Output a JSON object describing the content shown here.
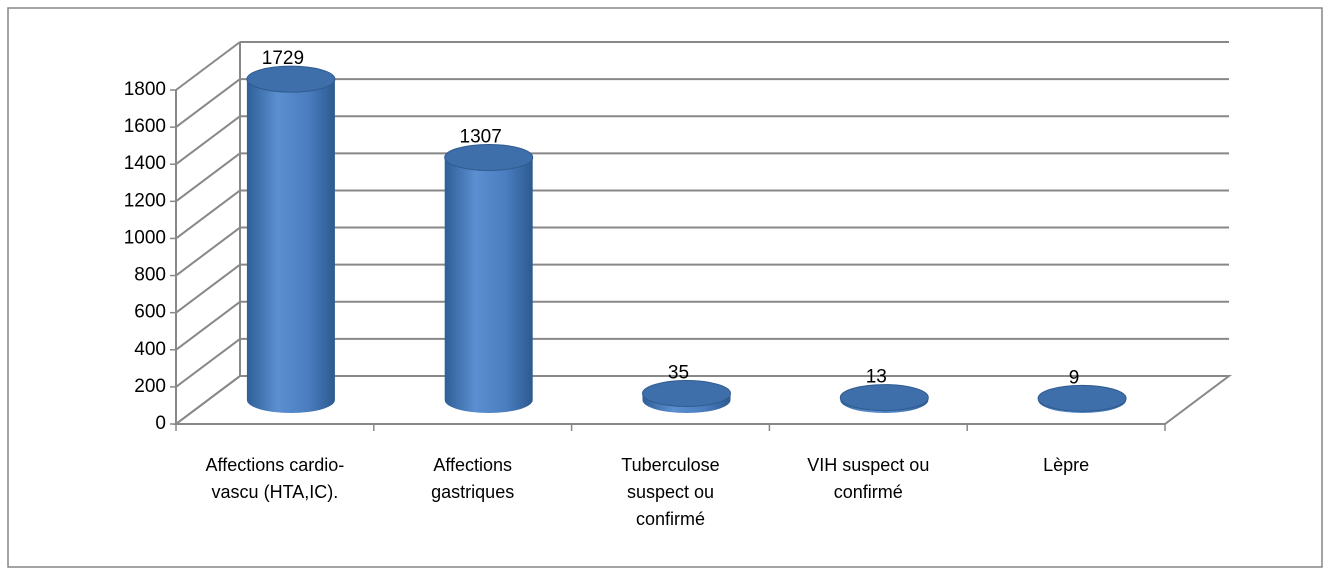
{
  "chart_data": {
    "type": "bar",
    "style": "3d-cylinder",
    "categories": [
      "Affections cardio- vascu (HTA,IC).",
      "Affections gastriques",
      "Tuberculose suspect ou confirmé",
      "VIH suspect ou confirmé",
      "Lèpre"
    ],
    "values": [
      1729,
      1307,
      35,
      13,
      9
    ],
    "color": "#4f81bd",
    "ylim": [
      0,
      1800
    ],
    "yticks": [
      0,
      200,
      400,
      600,
      800,
      1000,
      1200,
      1400,
      1600,
      1800
    ],
    "grid": true
  }
}
